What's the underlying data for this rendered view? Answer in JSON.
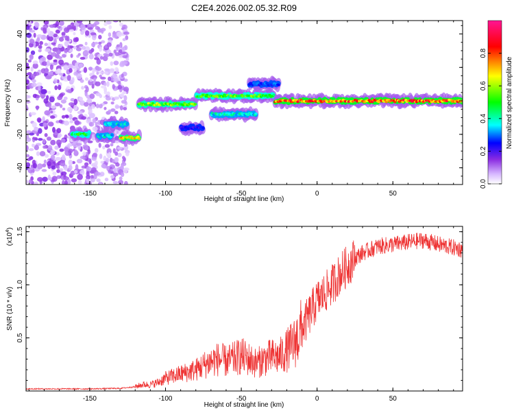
{
  "title": "C2E4.2026.002.05.32.R09",
  "chart_data": [
    {
      "type": "heatmap",
      "xlabel": "Height of straight line (km)",
      "ylabel": "Frequency (Hz)",
      "xlim": [
        -192,
        96
      ],
      "ylim": [
        -50,
        48
      ],
      "xticks": [
        -150,
        -100,
        -50,
        0,
        50
      ],
      "yticks": [
        -40,
        -20,
        0,
        20,
        40
      ],
      "colorbar": {
        "label": "Normalized spectral amplitude",
        "range": [
          0,
          1
        ],
        "ticks": [
          0.0,
          0.2,
          0.4,
          0.6,
          0.8
        ],
        "tick_labels": [
          "0.0",
          "0.2",
          "0.4",
          "0.6",
          "0.8"
        ],
        "colors": [
          "#ffffff",
          "#c9a6ff",
          "#8a2be2",
          "#0000ff",
          "#00ffff",
          "#00ff00",
          "#ffff00",
          "#ff0000",
          "#ff1493"
        ]
      },
      "features": [
        {
          "description": "noise",
          "x": [
            -192,
            -125
          ],
          "y": [
            -50,
            48
          ],
          "amplitude": 0.15
        },
        {
          "x": [
            -162,
            -150
          ],
          "y": -20,
          "amplitude": 0.5
        },
        {
          "x": [
            -145,
            -135
          ],
          "y": -21,
          "amplitude": 0.4
        },
        {
          "x": [
            -140,
            -125
          ],
          "y": -14,
          "amplitude": 0.4
        },
        {
          "x": [
            -130,
            -117
          ],
          "y": -22,
          "amplitude": 0.7
        },
        {
          "x": [
            -118,
            -80
          ],
          "y": -2,
          "amplitude": 0.6
        },
        {
          "x": [
            -80,
            -28
          ],
          "y": 3,
          "amplitude": 0.55
        },
        {
          "x": [
            -90,
            -75
          ],
          "y": -16,
          "amplitude": 0.25
        },
        {
          "x": [
            -70,
            -40
          ],
          "y": -8,
          "amplitude": 0.4
        },
        {
          "x": [
            -45,
            -25
          ],
          "y": 10,
          "amplitude": 0.3
        },
        {
          "x": [
            -28,
            96
          ],
          "y": 0,
          "amplitude": 0.85
        }
      ]
    },
    {
      "type": "line",
      "xlabel": "Height of straight line (km)",
      "ylabel": "SNR (10 * v/v)",
      "y_multiplier": "(x10^4)",
      "y_multiplier_base": "(x10",
      "y_multiplier_exp": "4",
      "y_multiplier_close": ")",
      "xlim": [
        -192,
        96
      ],
      "ylim": [
        0,
        1.55
      ],
      "xticks": [
        -150,
        -100,
        -50,
        0,
        50
      ],
      "yticks": [
        0.5,
        1.0,
        1.5
      ],
      "series": [
        {
          "color": "#ee3333",
          "x": [
            -192,
            -170,
            -150,
            -130,
            -120,
            -115,
            -110,
            -105,
            -100,
            -95,
            -90,
            -85,
            -80,
            -75,
            -70,
            -65,
            -60,
            -55,
            -50,
            -45,
            -40,
            -35,
            -30,
            -25,
            -20,
            -15,
            -10,
            -5,
            0,
            5,
            10,
            15,
            20,
            25,
            30,
            40,
            50,
            60,
            70,
            80,
            90,
            96
          ],
          "y": [
            0.02,
            0.02,
            0.02,
            0.025,
            0.04,
            0.06,
            0.06,
            0.08,
            0.12,
            0.14,
            0.16,
            0.18,
            0.2,
            0.24,
            0.28,
            0.3,
            0.28,
            0.3,
            0.33,
            0.3,
            0.26,
            0.3,
            0.32,
            0.32,
            0.38,
            0.45,
            0.58,
            0.72,
            0.85,
            0.92,
            1.0,
            1.1,
            1.18,
            1.25,
            1.3,
            1.36,
            1.38,
            1.4,
            1.42,
            1.38,
            1.35,
            1.33
          ]
        }
      ]
    }
  ]
}
